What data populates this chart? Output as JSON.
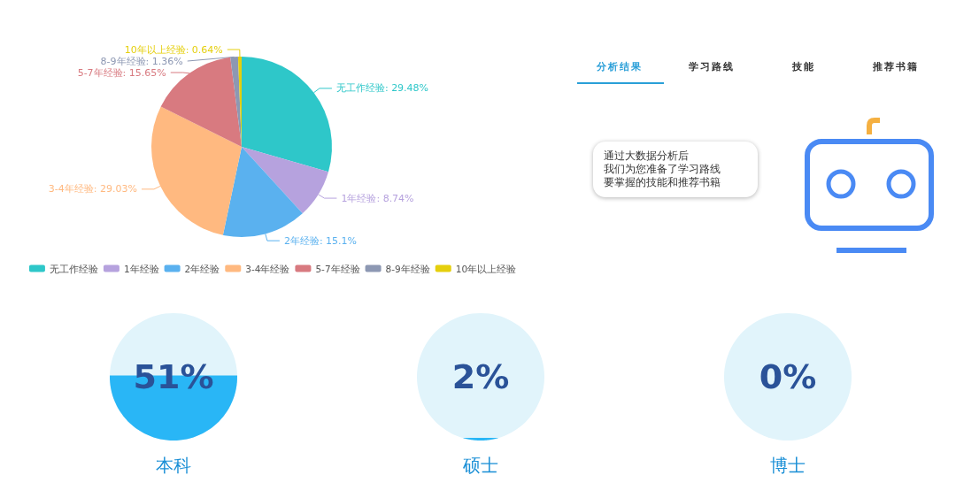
{
  "chart_data": [
    {
      "type": "pie",
      "categories": [
        "无工作经验",
        "1年经验",
        "2年经验",
        "3-4年经验",
        "5-7年经验",
        "8-9年经验",
        "10年以上经验"
      ],
      "values": [
        29.48,
        8.74,
        15.1,
        29.03,
        15.65,
        1.36,
        0.64
      ],
      "colors": [
        "#2ec7c9",
        "#b6a2de",
        "#5ab1ef",
        "#ffb980",
        "#d87a80",
        "#8d98b3",
        "#e5cf0d"
      ],
      "value_labels": [
        "无工作经验: 29.48%",
        "1年经验: 8.74%",
        "2年经验: 15.1%",
        "3-4年经验: 29.03%",
        "5-7年经验: 15.65%",
        "8-9年经验: 1.36%",
        "10年以上经验: 0.64%"
      ],
      "legend": "bottom"
    },
    {
      "type": "other",
      "categories": [
        "分析结果",
        "学习路线",
        "技能",
        "推荐书籍"
      ],
      "annotations": [
        "通过大数据分析后",
        "我们为您准备了学习路线",
        "要掌握的技能和推荐书籍"
      ]
    },
    {
      "type": "other",
      "categories": [
        "本科",
        "硕士",
        "博士"
      ],
      "values": [
        51,
        2,
        0
      ],
      "value_labels": [
        "51%",
        "2%",
        "0%"
      ]
    }
  ]
}
